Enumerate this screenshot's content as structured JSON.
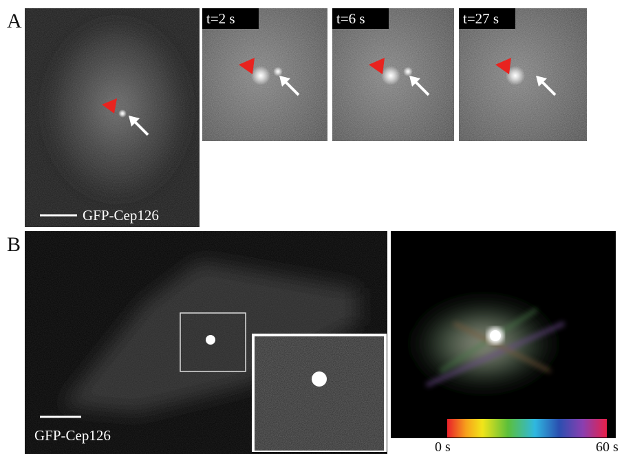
{
  "panel_a": {
    "label": "A",
    "overview": {
      "caption": "GFP-Cep126"
    },
    "frames": [
      {
        "time": "t=2 s"
      },
      {
        "time": "t=6 s"
      },
      {
        "time": "t=27 s"
      }
    ]
  },
  "panel_b": {
    "label": "B",
    "overview": {
      "caption": "GFP-Cep126"
    },
    "colorbar": {
      "start": "0 s",
      "end": "60 s"
    }
  }
}
